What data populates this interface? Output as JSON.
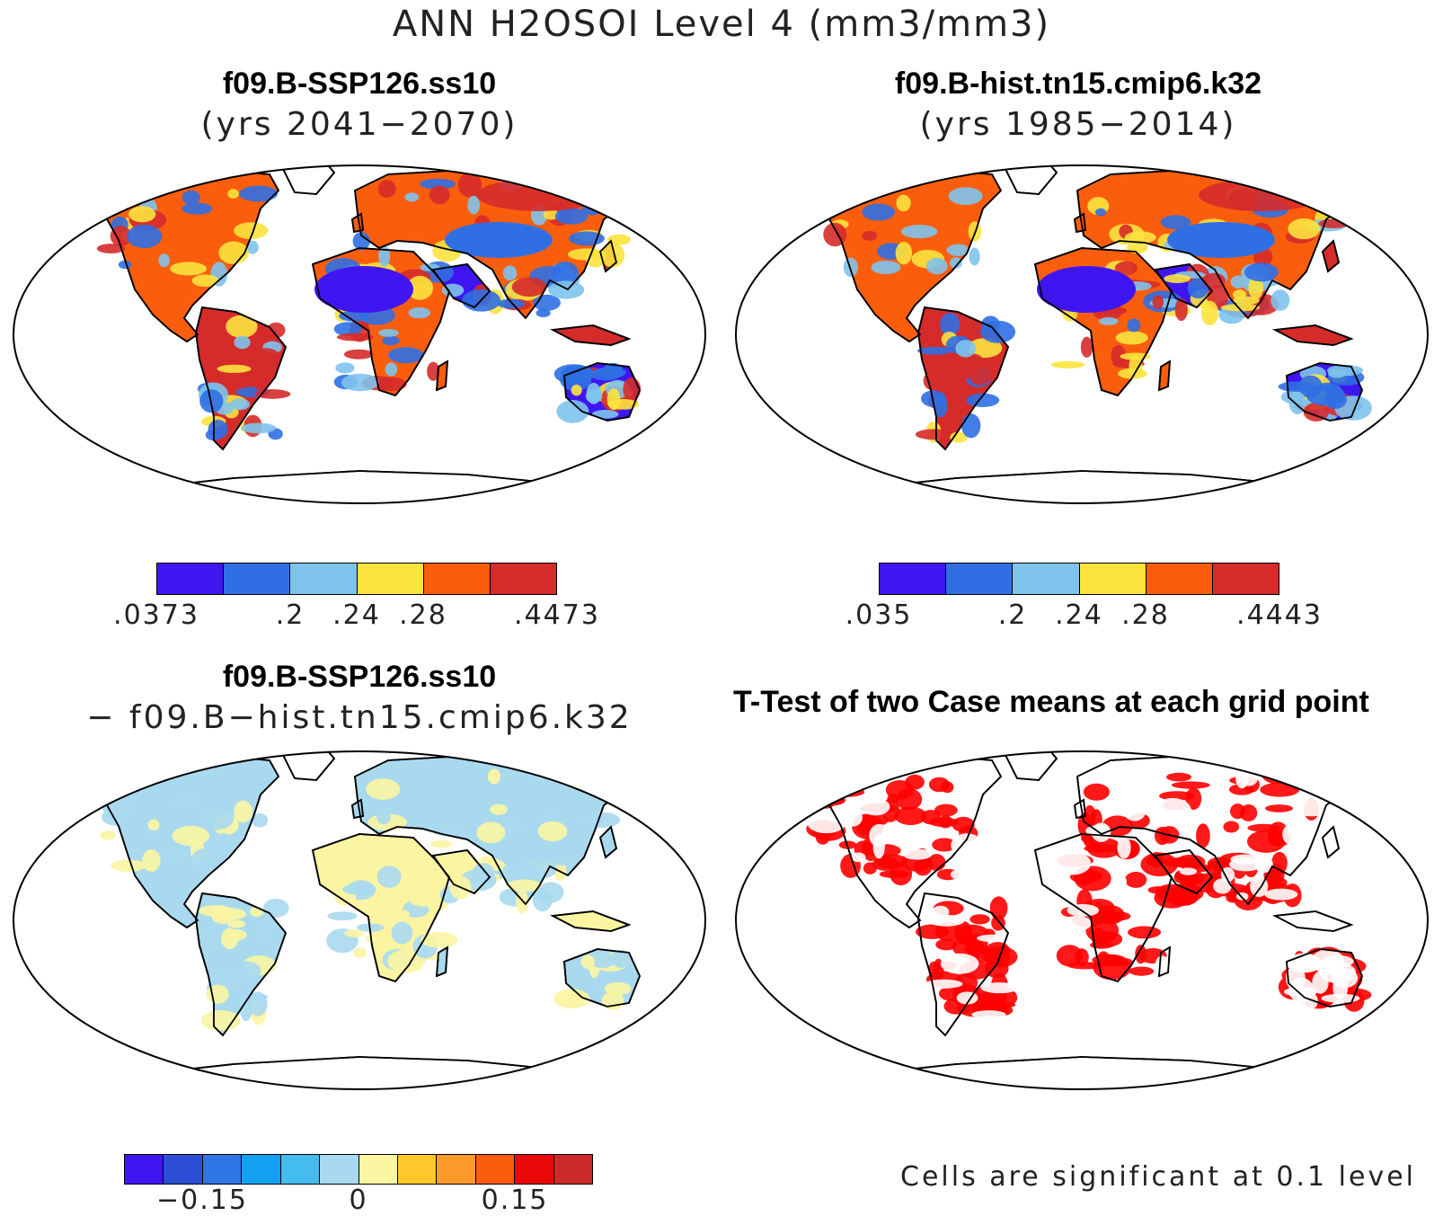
{
  "title": "ANN H2OSOI Level 4 (mm3/mm3)",
  "panels": [
    {
      "title": "f09.B-SSP126.ss10",
      "subtitle": "(yrs 2041−2070)"
    },
    {
      "title": "f09.B-hist.tn15.cmip6.k32",
      "subtitle": "(yrs 1985−2014)"
    },
    {
      "title": "f09.B-SSP126.ss10",
      "subtitle": "− f09.B−hist.tn15.cmip6.k32"
    },
    {
      "title": "T-Test of two Case means at each grid point",
      "subtitle": ""
    }
  ],
  "colorbars": {
    "case1": {
      "colors": [
        "#3f16f2",
        "#2f6fe3",
        "#7ec3ec",
        "#fbe33e",
        "#fa5e0c",
        "#d62b2b"
      ],
      "ticks": [
        ".0373",
        ".2",
        ".24",
        ".28",
        ".4473"
      ]
    },
    "case2": {
      "colors": [
        "#3f16f2",
        "#2f6fe3",
        "#7ec3ec",
        "#fbe33e",
        "#fa5e0c",
        "#d62b2b"
      ],
      "ticks": [
        ".035",
        ".2",
        ".24",
        ".28",
        ".4443"
      ]
    },
    "diff": {
      "colors": [
        "#3f16f2",
        "#2c4fd6",
        "#2f75e3",
        "#13a0f0",
        "#45bcee",
        "#a9d9ef",
        "#fbf5a2",
        "#fcc82a",
        "#f99a2a",
        "#fb5d0d",
        "#ea0808",
        "#cc2a2a"
      ],
      "ticks": [
        "−0.15",
        "0",
        "0.15"
      ]
    }
  },
  "ttest_note": "Cells are significant at 0.1 level",
  "ttest_color": "#ff0000"
}
